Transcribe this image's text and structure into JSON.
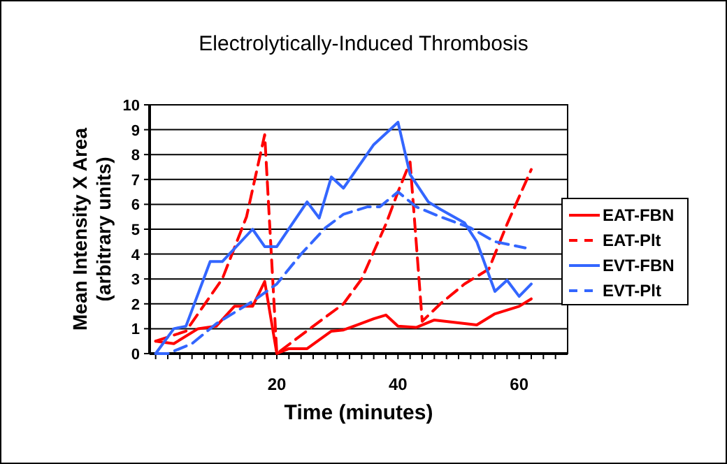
{
  "chart_data": {
    "type": "line",
    "title": "Electrolytically-Induced Thrombosis",
    "xlabel": "Time (minutes)",
    "ylabel": "Mean Intensity X Area\n(arbitrary units)",
    "xlim": [
      -1,
      68
    ],
    "ylim": [
      0,
      10
    ],
    "yticks": [
      0,
      1,
      2,
      3,
      4,
      5,
      6,
      7,
      8,
      9,
      10
    ],
    "xticks": [
      {
        "value": 0,
        "label": null
      },
      {
        "value": 2,
        "label": null
      },
      {
        "value": 4,
        "label": null
      },
      {
        "value": 6,
        "label": null
      },
      {
        "value": 8,
        "label": null
      },
      {
        "value": 10,
        "label": null
      },
      {
        "value": 12,
        "label": null
      },
      {
        "value": 14,
        "label": null
      },
      {
        "value": 16,
        "label": null
      },
      {
        "value": 18,
        "label": null
      },
      20,
      {
        "value": 22,
        "label": null
      },
      {
        "value": 24,
        "label": null
      },
      {
        "value": 26,
        "label": null
      },
      {
        "value": 28,
        "label": null
      },
      {
        "value": 30,
        "label": null
      },
      {
        "value": 32,
        "label": null
      },
      {
        "value": 34,
        "label": null
      },
      {
        "value": 36,
        "label": null
      },
      {
        "value": 38,
        "label": null
      },
      40,
      {
        "value": 42,
        "label": null
      },
      {
        "value": 44,
        "label": null
      },
      {
        "value": 46,
        "label": null
      },
      {
        "value": 48,
        "label": null
      },
      {
        "value": 50,
        "label": null
      },
      {
        "value": 52,
        "label": null
      },
      {
        "value": 54,
        "label": null
      },
      {
        "value": 56,
        "label": null
      },
      {
        "value": 58,
        "label": null
      },
      60,
      {
        "value": 62,
        "label": null
      },
      {
        "value": 64,
        "label": null
      },
      {
        "value": 66,
        "label": null
      }
    ],
    "grid": "y",
    "legend": "right",
    "marker": "none",
    "series": [
      {
        "name": "EAT-FBN",
        "color": "#ff0000",
        "line_style": "solid",
        "x": [
          0,
          3,
          7,
          10,
          13,
          16,
          18,
          20,
          22,
          25,
          29,
          31,
          36,
          38,
          40,
          43,
          46,
          53,
          56,
          60,
          62
        ],
        "values": [
          0.5,
          0.4,
          1.0,
          1.1,
          1.9,
          1.9,
          2.9,
          0,
          0.2,
          0.2,
          0.9,
          0.95,
          1.4,
          1.55,
          1.1,
          1.05,
          1.35,
          1.15,
          1.6,
          1.9,
          2.2
        ]
      },
      {
        "name": "EAT-Plt",
        "color": "#ff0000",
        "line_style": "dashed",
        "x": [
          0,
          5,
          11,
          15,
          18,
          20,
          26,
          31,
          34,
          38,
          40,
          42,
          44,
          47,
          51,
          55,
          58,
          62
        ],
        "values": [
          0.5,
          0.9,
          3.0,
          5.5,
          8.8,
          0,
          1.1,
          2.0,
          3.0,
          5.2,
          6.5,
          7.7,
          1.3,
          2.0,
          2.8,
          3.4,
          5.2,
          7.4
        ]
      },
      {
        "name": "EVT-FBN",
        "color": "#3366ff",
        "line_style": "solid",
        "x": [
          0,
          3,
          5,
          9,
          11,
          16,
          18,
          20,
          25,
          27,
          29,
          31,
          36,
          40,
          42,
          45,
          47,
          51,
          53,
          56,
          58,
          60,
          62
        ],
        "values": [
          0,
          1.0,
          1.1,
          3.7,
          3.7,
          5.0,
          4.3,
          4.3,
          6.1,
          5.45,
          7.1,
          6.65,
          8.4,
          9.3,
          7.2,
          6.1,
          5.8,
          5.25,
          4.5,
          2.5,
          2.95,
          2.3,
          2.8
        ]
      },
      {
        "name": "EVT-Plt",
        "color": "#3366ff",
        "line_style": "dashed",
        "x": [
          0,
          2,
          6,
          10,
          16,
          20,
          24,
          28,
          31,
          35,
          37,
          40,
          43,
          47,
          52,
          56,
          61
        ],
        "values": [
          0,
          0,
          0.4,
          1.2,
          2.1,
          2.8,
          4.0,
          5.05,
          5.6,
          5.9,
          5.9,
          6.5,
          5.9,
          5.5,
          5.05,
          4.5,
          4.25
        ]
      }
    ]
  }
}
